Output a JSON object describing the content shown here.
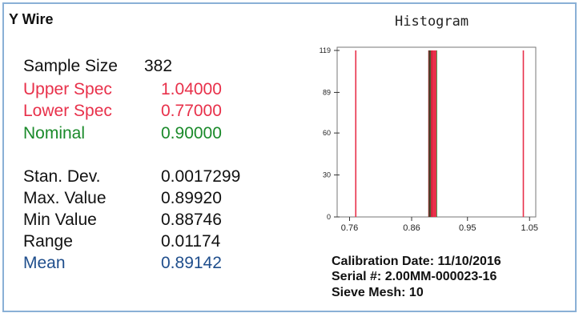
{
  "panel": {
    "title": "Y Wire"
  },
  "stats": [
    {
      "key": "sample_size",
      "label": "Sample Size",
      "value": "382",
      "color": "#111111"
    },
    {
      "key": "upper_spec",
      "label": "Upper Spec",
      "value": "1.04000",
      "color": "#e8304a"
    },
    {
      "key": "lower_spec",
      "label": "Lower Spec",
      "value": "0.77000",
      "color": "#e8304a"
    },
    {
      "key": "nominal",
      "label": "Nominal",
      "value": "0.90000",
      "color": "#1a8a2a"
    },
    {
      "key": "stan_dev",
      "label": "Stan. Dev.",
      "value": "0.0017299",
      "color": "#111111"
    },
    {
      "key": "max_value",
      "label": "Max. Value",
      "value": "0.89920",
      "color": "#111111"
    },
    {
      "key": "min_value",
      "label": "Min Value",
      "value": "0.88746",
      "color": "#111111"
    },
    {
      "key": "range",
      "label": "Range",
      "value": "0.01174",
      "color": "#111111"
    },
    {
      "key": "mean",
      "label": "Mean",
      "value": "0.89142",
      "color": "#1f4e8c"
    }
  ],
  "histogram": {
    "title": "Histogram"
  },
  "chart_data": {
    "type": "bar",
    "title": "Histogram",
    "xlabel": "",
    "ylabel": "",
    "xlim": [
      0.74,
      1.06
    ],
    "ylim": [
      0,
      119
    ],
    "x_ticks": [
      "0.76",
      "0.86",
      "0.95",
      "1.05"
    ],
    "x_tick_values": [
      0.76,
      0.86,
      0.95,
      1.05
    ],
    "y_ticks": [
      "0",
      "30",
      "60",
      "89",
      "119"
    ],
    "y_tick_values": [
      0,
      30,
      60,
      89,
      119
    ],
    "spec_lines": [
      {
        "name": "Lower Spec",
        "x": 0.77,
        "color": "#e8304a"
      },
      {
        "name": "Nominal",
        "x": 0.9,
        "color": "#1a8a2a"
      },
      {
        "name": "Upper Spec",
        "x": 1.04,
        "color": "#e8304a"
      }
    ],
    "bars": [
      {
        "x": 0.8878,
        "count": 119,
        "color": "#8a2a2a"
      },
      {
        "x": 0.8885,
        "count": 119,
        "color": "#7a3a2a"
      },
      {
        "x": 0.8893,
        "count": 119,
        "color": "#3a3a2a"
      },
      {
        "x": 0.8902,
        "count": 119,
        "color": "#5a4a2a"
      },
      {
        "x": 0.891,
        "count": 119,
        "color": "#2a6a2a"
      },
      {
        "x": 0.8918,
        "count": 119,
        "color": "#e8304a"
      },
      {
        "x": 0.8926,
        "count": 119,
        "color": "#c81e3a"
      },
      {
        "x": 0.8935,
        "count": 119,
        "color": "#d8203a"
      },
      {
        "x": 0.8945,
        "count": 119,
        "color": "#e8304a"
      },
      {
        "x": 0.896,
        "count": 119,
        "color": "#e8304a"
      },
      {
        "x": 0.8978,
        "count": 119,
        "color": "#e8304a"
      },
      {
        "x": 0.899,
        "count": 119,
        "color": "#e8304a"
      }
    ]
  },
  "footer": {
    "calibration": "Calibration Date: 11/10/2016",
    "serial": "Serial #: 2.00MM-000023-16",
    "sieve": "Sieve Mesh: 10"
  }
}
